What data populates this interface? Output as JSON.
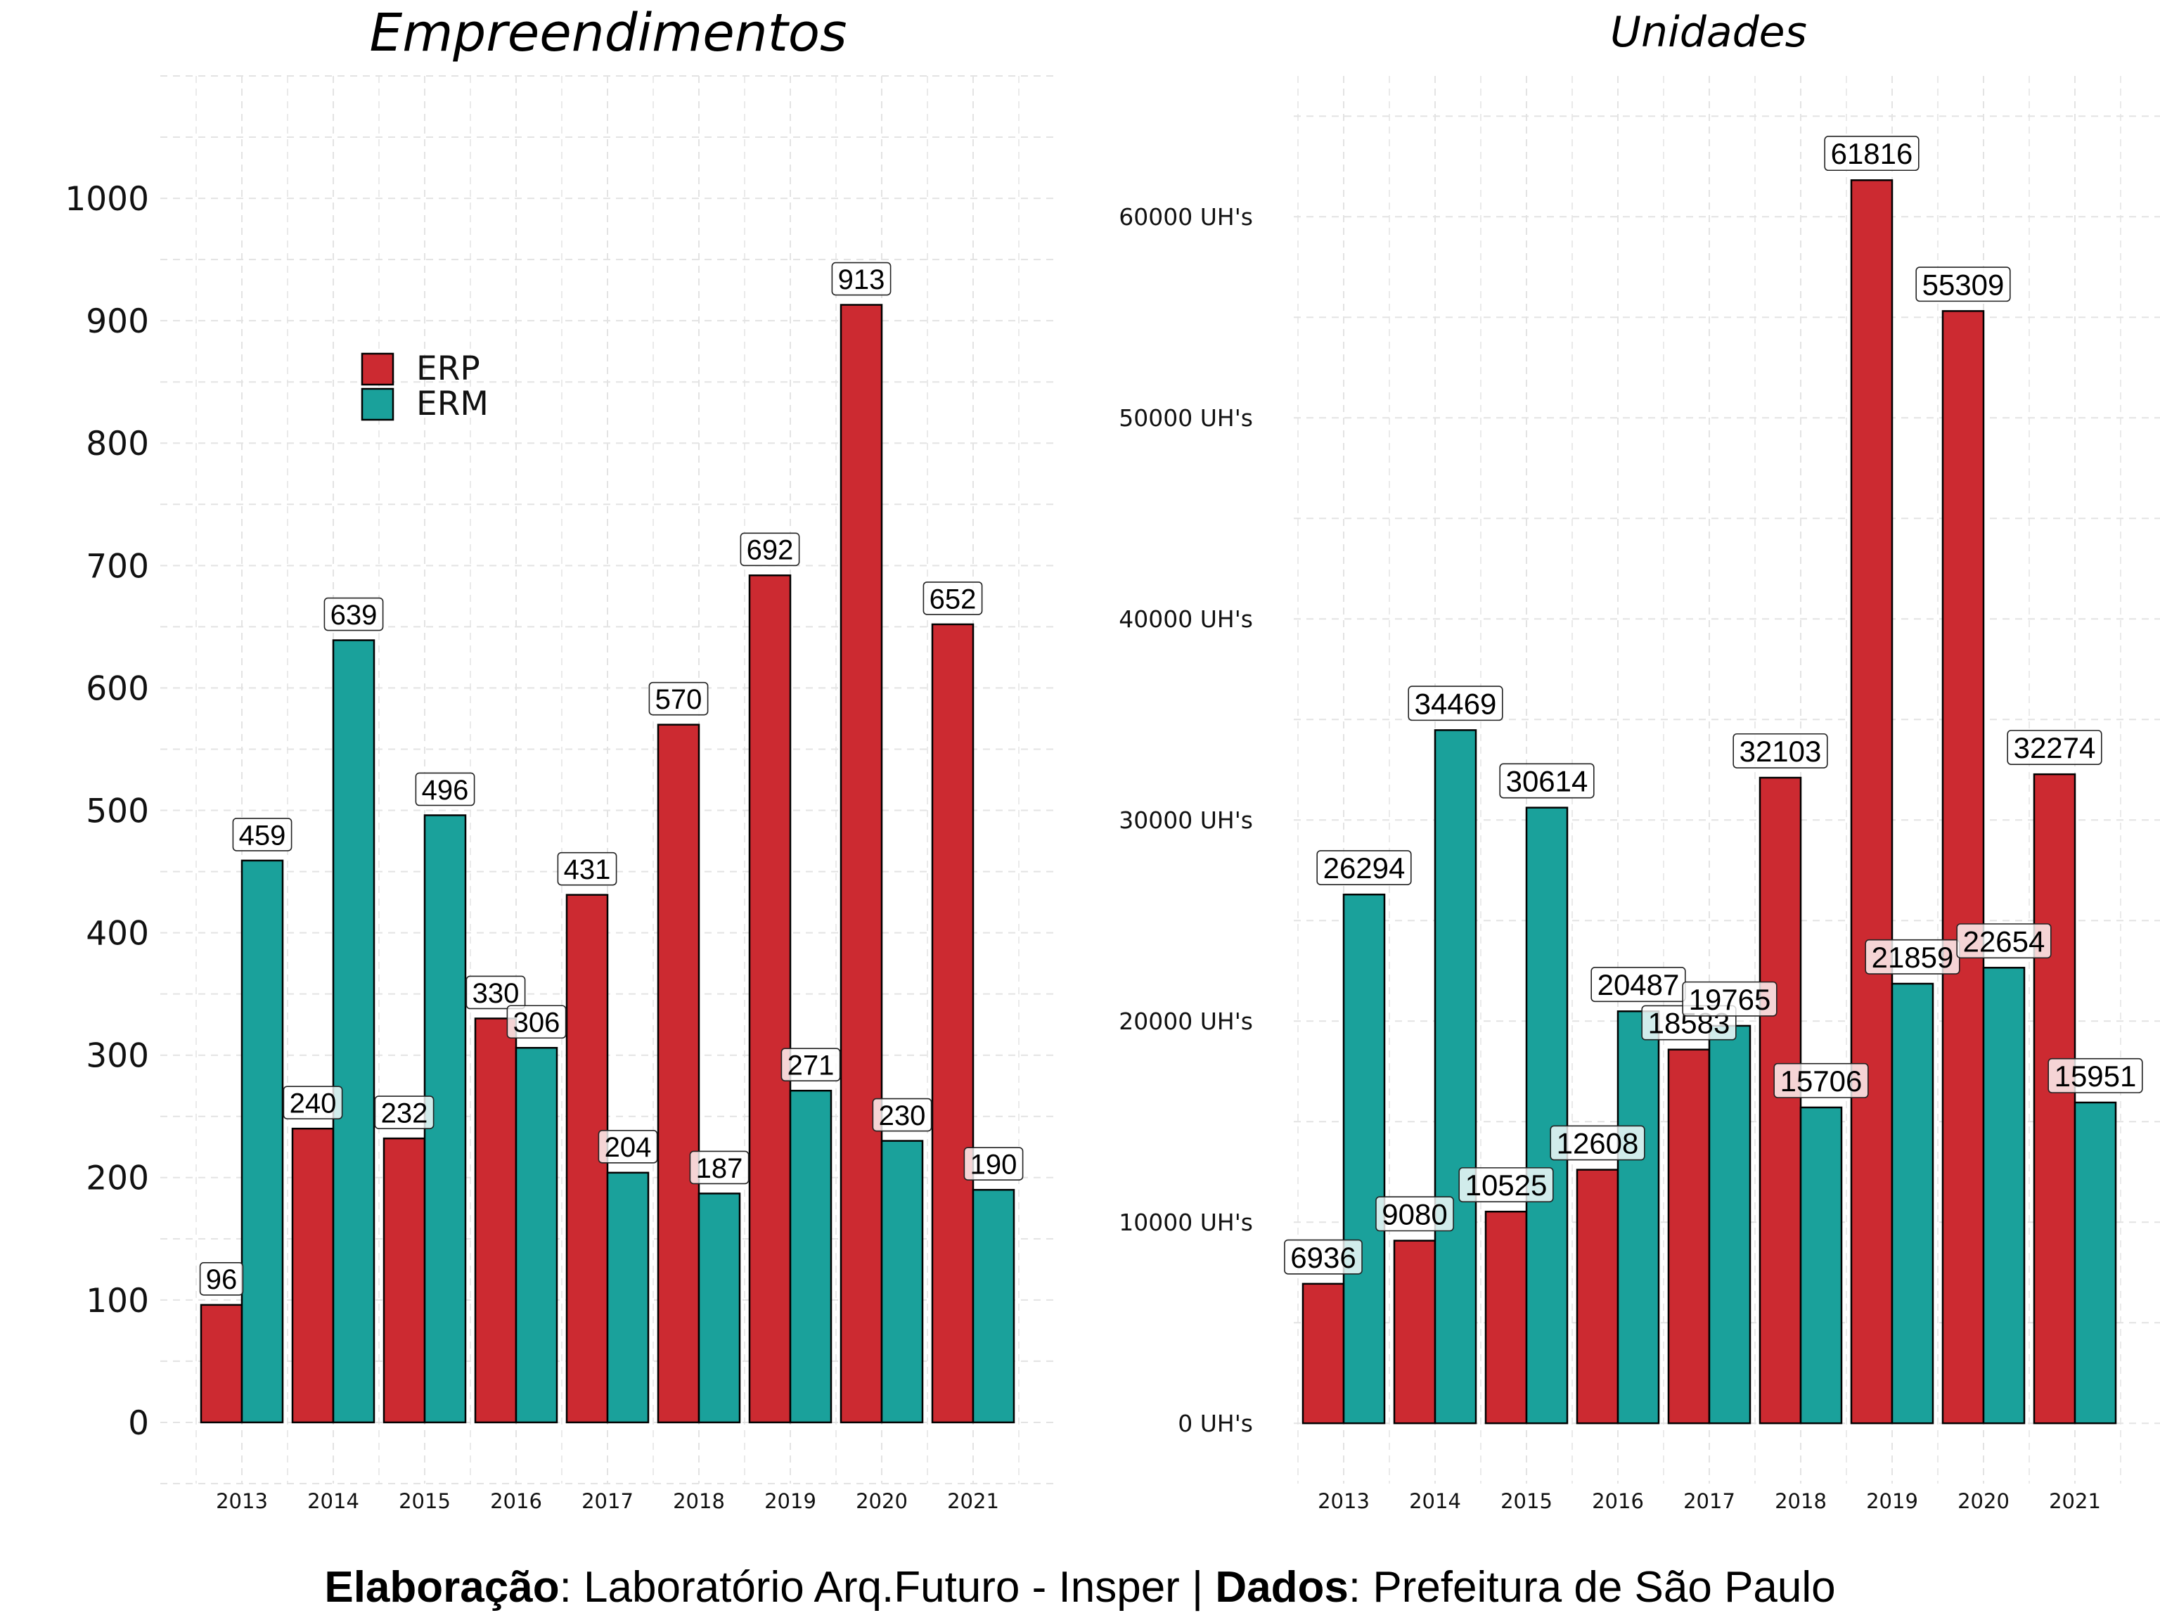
{
  "colors": {
    "ERP": "#CC2A31",
    "ERM": "#1AA19B",
    "bar_outline": "#000000",
    "grid": "#e3e3e3"
  },
  "caption": {
    "label1": "Elaboração",
    "text1": ": Laboratório Arq.Futuro - Insper | ",
    "label2": "Dados",
    "text2": ": Prefeitura de São Paulo"
  },
  "chart_data": [
    {
      "type": "bar",
      "title": "Empreendimentos",
      "categories": [
        "2013",
        "2014",
        "2015",
        "2016",
        "2017",
        "2018",
        "2019",
        "2020",
        "2021"
      ],
      "series": [
        {
          "name": "ERP",
          "values": [
            96,
            240,
            232,
            330,
            431,
            570,
            692,
            913,
            652
          ]
        },
        {
          "name": "ERM",
          "values": [
            459,
            639,
            496,
            306,
            204,
            187,
            271,
            230,
            190
          ]
        }
      ],
      "yticks": [
        "0",
        "100",
        "200",
        "300",
        "400",
        "500",
        "600",
        "700",
        "800",
        "900",
        "1000"
      ],
      "ylim": [
        -50,
        1100
      ],
      "legend": "top-left",
      "grid": true
    },
    {
      "type": "bar",
      "title": "Unidades",
      "categories": [
        "2013",
        "2014",
        "2015",
        "2016",
        "2017",
        "2018",
        "2019",
        "2020",
        "2021"
      ],
      "series": [
        {
          "name": "ERP",
          "values": [
            6936,
            9080,
            10525,
            12608,
            18583,
            32103,
            61816,
            55309,
            32274
          ]
        },
        {
          "name": "ERM",
          "values": [
            26294,
            34469,
            30614,
            20487,
            19765,
            15706,
            21859,
            22654,
            15951
          ]
        }
      ],
      "yticks": [
        "0 UH's",
        "10000 UH's",
        "20000 UH's",
        "30000 UH's",
        "40000 UH's",
        "50000 UH's",
        "60000 UH's"
      ],
      "ylim": [
        -3000,
        67000
      ],
      "grid": true
    }
  ]
}
